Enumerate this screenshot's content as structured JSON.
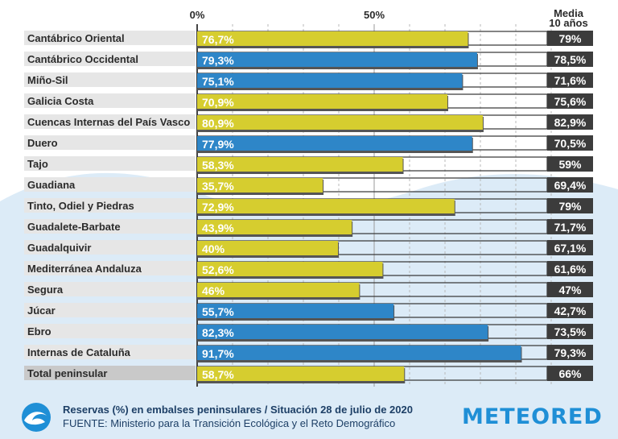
{
  "chart_data": {
    "type": "bar",
    "title": "Reservas (%) en embalses peninsulares / Situación 28 de julio de 2020",
    "source": "FUENTE: Ministerio para la Transición Ecológica y el Reto Demográfico",
    "xlim": [
      0,
      100
    ],
    "ticks": [
      {
        "value": 0,
        "label": "0%"
      },
      {
        "value": 50,
        "label": "50%"
      }
    ],
    "avg_header": [
      "Media",
      "10 años"
    ],
    "grid": "vertical dashed",
    "categories": [
      "Cantábrico Oriental",
      "Cantábrico Occidental",
      "Miño-Sil",
      "Galicia Costa",
      "Cuencas Internas del País Vasco",
      "Duero",
      "Tajo",
      "Guadiana",
      "Tinto, Odiel y Piedras",
      "Guadalete-Barbate",
      "Guadalquivir",
      "Mediterránea Andaluza",
      "Segura",
      "Júcar",
      "Ebro",
      "Internas de Cataluña",
      "Total peninsular"
    ],
    "values": [
      76.7,
      79.3,
      75.1,
      70.9,
      80.9,
      77.9,
      58.3,
      35.7,
      72.9,
      43.9,
      40,
      52.6,
      46,
      55.7,
      82.3,
      91.7,
      58.7
    ],
    "value_labels": [
      "76,7%",
      "79,3%",
      "75,1%",
      "70,9%",
      "80,9%",
      "77,9%",
      "58,3%",
      "35,7%",
      "72,9%",
      "43,9%",
      "40%",
      "52,6%",
      "46%",
      "55,7%",
      "82,3%",
      "91,7%",
      "58,7%"
    ],
    "avg_10y": [
      79,
      78.5,
      71.6,
      75.6,
      82.9,
      70.5,
      59,
      69.4,
      79,
      71.7,
      67.1,
      61.6,
      47,
      42.7,
      73.5,
      79.3,
      66
    ],
    "avg_labels": [
      "79%",
      "78,5%",
      "71,6%",
      "75,6%",
      "82,9%",
      "70,5%",
      "59%",
      "69,4%",
      "79%",
      "71,7%",
      "67,1%",
      "61,6%",
      "47%",
      "42,7%",
      "73,5%",
      "79,3%",
      "66%"
    ],
    "bar_colors": [
      "yellow",
      "blue",
      "blue",
      "yellow",
      "yellow",
      "blue",
      "yellow",
      "yellow",
      "yellow",
      "yellow",
      "yellow",
      "yellow",
      "yellow",
      "blue",
      "blue",
      "blue",
      "yellow"
    ],
    "colors": {
      "yellow": "#d6cd2f",
      "blue": "#2e86c8",
      "avg_box": "#3c3c3c",
      "label_bg": "#e6e6e6",
      "total_label_bg": "#c9c9c9",
      "wave": "#dcebf7"
    }
  },
  "brand": {
    "name": "METEORED"
  },
  "icons": {
    "logo": "wave-logo-icon"
  }
}
